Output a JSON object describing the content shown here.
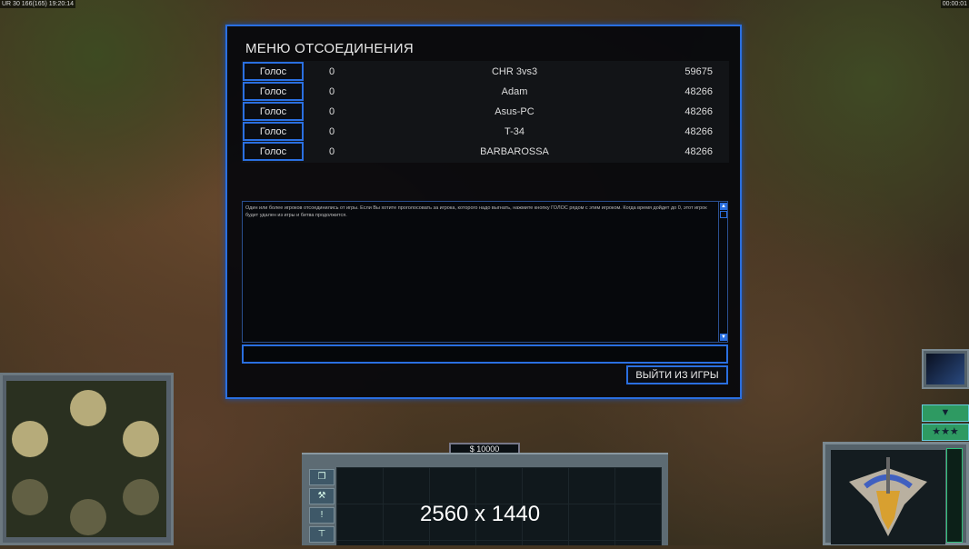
{
  "hud": {
    "status_left": "UR 30 166(165) 19:20:14",
    "timer": "00:00:01"
  },
  "dialog": {
    "title": "МЕНЮ ОТСОЕДИНЕНИЯ",
    "players": [
      {
        "vote_label": "Голос",
        "votes": "0",
        "name": "CHR 3vs3",
        "ping": "59675"
      },
      {
        "vote_label": "Голос",
        "votes": "0",
        "name": "Adam",
        "ping": "48266"
      },
      {
        "vote_label": "Голос",
        "votes": "0",
        "name": "Asus-PC",
        "ping": "48266"
      },
      {
        "vote_label": "Голос",
        "votes": "0",
        "name": "T-34",
        "ping": "48266"
      },
      {
        "vote_label": "Голос",
        "votes": "0",
        "name": "BARBAROSSA",
        "ping": "48266"
      }
    ],
    "message": "Один или более игроков отсоединились от игры. Если Вы хотите проголосовать за игрока, которого надо выгнать, нажмите кнопку ГОЛОС рядом с этим игроком. Когда время дойдет до 0, этот игрок будет удален из игры и битва продолжится.",
    "chat_input": "",
    "exit_label": "ВЫЙТИ ИЗ ИГРЫ"
  },
  "command_bar": {
    "money": "$ 10000",
    "overlay_text": "2560 x 1440",
    "side_icons": [
      "windows-icon",
      "wrench-icon",
      "alert-icon",
      "sell-sign-icon"
    ]
  },
  "colors": {
    "accent": "#2a6fe0",
    "power": "#2fbf7a"
  }
}
